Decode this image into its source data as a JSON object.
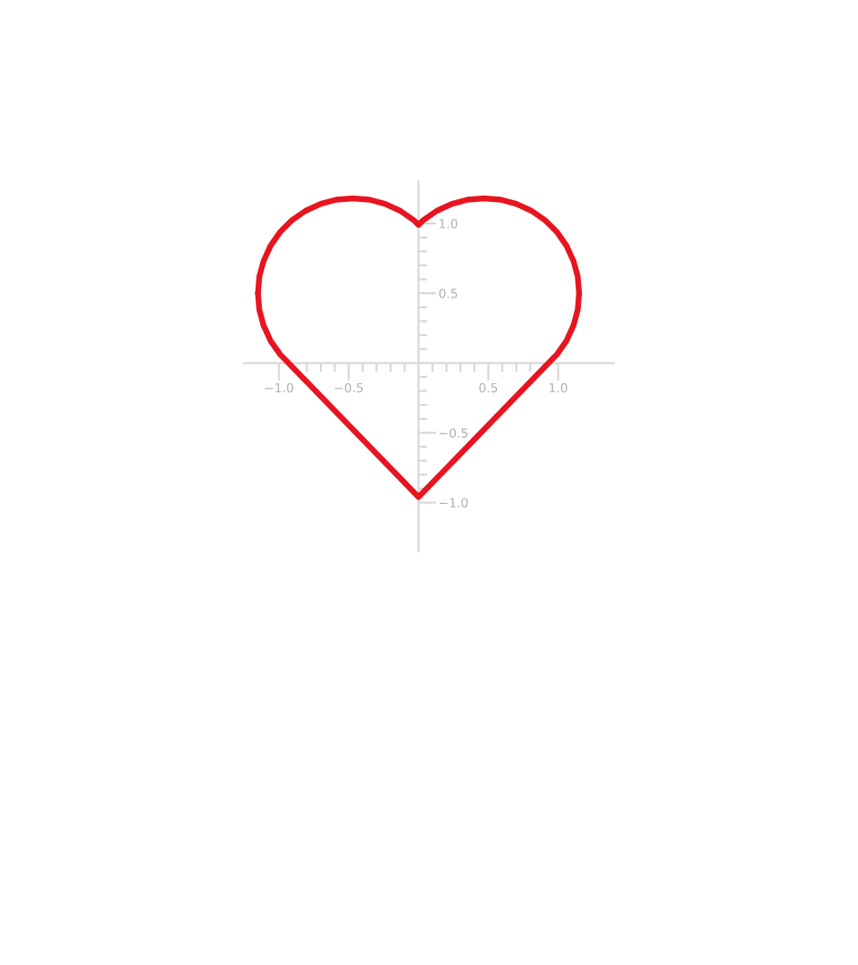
{
  "chart_data": {
    "type": "line",
    "series": [
      {
        "color": "#e8141f",
        "x": [
          -1.15,
          -1.14,
          -1.11,
          -1.06,
          -0.99,
          -0.91,
          -0.81,
          -0.7,
          -0.59,
          -0.47,
          -0.35,
          -0.24,
          -0.13,
          -0.03,
          0,
          0.03,
          0.13,
          0.24,
          0.35,
          0.47,
          0.59,
          0.7,
          0.81,
          0.91,
          0.99,
          1.06,
          1.11,
          1.14,
          1.15
        ],
        "values": [
          0.5,
          0.62,
          0.73,
          0.84,
          0.94,
          1.02,
          1.09,
          1.14,
          1.17,
          1.18,
          1.17,
          1.14,
          1.09,
          1.02,
          0.99,
          1.02,
          1.09,
          1.14,
          1.17,
          1.18,
          1.17,
          1.14,
          1.09,
          1.02,
          0.94,
          0.84,
          0.73,
          0.62,
          0.5
        ]
      },
      {
        "color": "#e8141f",
        "x": [
          -1.15,
          -1.14,
          -1.11,
          -1.06,
          -0.99,
          -0.97,
          0,
          0.97,
          0.99,
          1.06,
          1.11,
          1.14,
          1.15
        ],
        "values": [
          0.5,
          0.38,
          0.27,
          0.16,
          0.06,
          0.04,
          -0.96,
          0.04,
          0.06,
          0.16,
          0.27,
          0.38,
          0.5
        ]
      }
    ],
    "xlim": [
      -1.25,
      1.4
    ],
    "ylim": [
      -1.35,
      1.3
    ],
    "xticks": [
      {
        "value": -1.0,
        "label": "−1.0"
      },
      {
        "value": -0.9,
        "label": null
      },
      {
        "value": -0.8,
        "label": null
      },
      {
        "value": -0.7,
        "label": null
      },
      {
        "value": -0.6,
        "label": null
      },
      {
        "value": -0.5,
        "label": "−0.5"
      },
      {
        "value": -0.4,
        "label": null
      },
      {
        "value": -0.3,
        "label": null
      },
      {
        "value": -0.2,
        "label": null
      },
      {
        "value": -0.1,
        "label": null
      },
      {
        "value": 0.1,
        "label": null
      },
      {
        "value": 0.2,
        "label": null
      },
      {
        "value": 0.3,
        "label": null
      },
      {
        "value": 0.4,
        "label": null
      },
      {
        "value": 0.5,
        "label": "0.5"
      },
      {
        "value": 0.6,
        "label": null
      },
      {
        "value": 0.7,
        "label": null
      },
      {
        "value": 0.8,
        "label": null
      },
      {
        "value": 0.9,
        "label": null
      },
      {
        "value": 1.0,
        "label": "1.0"
      }
    ],
    "yticks": [
      {
        "value": -1.0,
        "label": "−1.0"
      },
      {
        "value": -0.9,
        "label": null
      },
      {
        "value": -0.8,
        "label": null
      },
      {
        "value": -0.7,
        "label": null
      },
      {
        "value": -0.6,
        "label": null
      },
      {
        "value": -0.5,
        "label": "−0.5"
      },
      {
        "value": -0.4,
        "label": null
      },
      {
        "value": -0.3,
        "label": null
      },
      {
        "value": -0.2,
        "label": null
      },
      {
        "value": -0.1,
        "label": null
      },
      {
        "value": 0.1,
        "label": null
      },
      {
        "value": 0.2,
        "label": null
      },
      {
        "value": 0.3,
        "label": null
      },
      {
        "value": 0.4,
        "label": null
      },
      {
        "value": 0.5,
        "label": "0.5"
      },
      {
        "value": 0.6,
        "label": null
      },
      {
        "value": 0.7,
        "label": null
      },
      {
        "value": 0.8,
        "label": null
      },
      {
        "value": 0.9,
        "label": null
      },
      {
        "value": 1.0,
        "label": "1.0"
      }
    ]
  }
}
